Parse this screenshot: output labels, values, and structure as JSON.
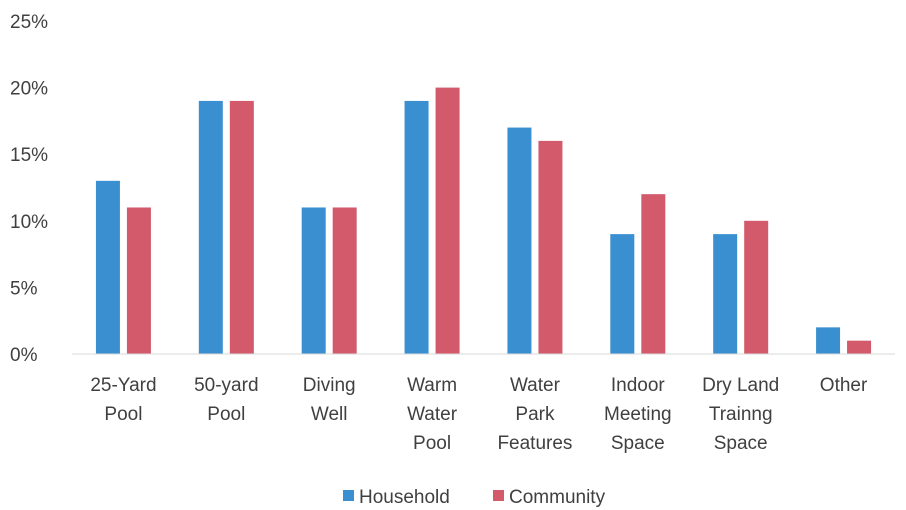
{
  "chart_data": {
    "type": "bar",
    "categories": [
      [
        "25-Yard",
        "Pool"
      ],
      [
        "50-yard",
        "Pool"
      ],
      [
        "Diving",
        "Well"
      ],
      [
        "Warm",
        "Water",
        "Pool"
      ],
      [
        "Water",
        "Park",
        "Features"
      ],
      [
        "Indoor",
        "Meeting",
        "Space"
      ],
      [
        "Dry Land",
        "Trainng",
        "Space"
      ],
      [
        "Other"
      ]
    ],
    "series": [
      {
        "name": "Household",
        "values": [
          13,
          19,
          11,
          19,
          17,
          9,
          9,
          2
        ]
      },
      {
        "name": "Community",
        "values": [
          11,
          19,
          11,
          20,
          16,
          12,
          10,
          1
        ]
      }
    ],
    "yticks": [
      "0%",
      "5%",
      "10%",
      "15%",
      "20%",
      "25%"
    ],
    "ylim": [
      0,
      25
    ],
    "ystep": 5,
    "title": "",
    "xlabel": "",
    "ylabel": "",
    "grid": false,
    "legend": "bottom-center",
    "colors": [
      "#3a8fd0",
      "#d25a6b"
    ]
  }
}
